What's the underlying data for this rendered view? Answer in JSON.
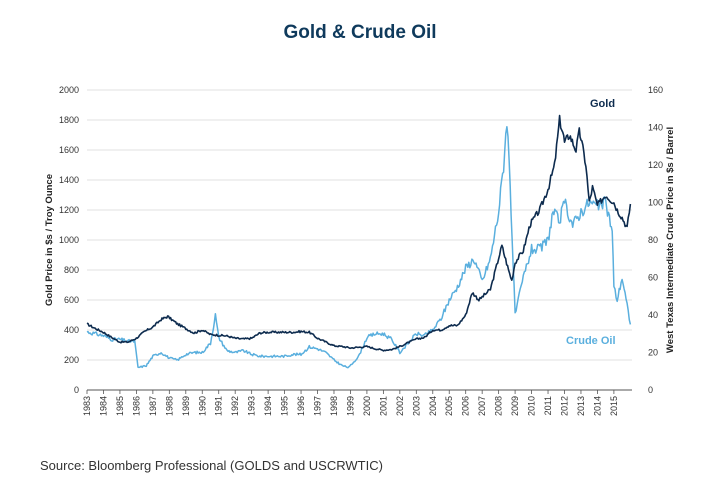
{
  "source": "Source: Bloomberg Professional (GOLDS and USCRWTIC)",
  "colors": {
    "gold": "#0d2b4e",
    "crude_oil": "#5aafde",
    "title": "#0f3a5c",
    "grid": "#d9d9d9"
  },
  "chart_data": {
    "type": "line",
    "title": "Gold & Crude Oil",
    "y_left_label": "Gold Price in $s / Troy Ounce",
    "y_right_label": "West Texas Intermediate Crude Price in $s / Barrel",
    "x_ticks": [
      "1983",
      "1984",
      "1985",
      "1986",
      "1987",
      "1988",
      "1989",
      "1990",
      "1991",
      "1992",
      "1993",
      "1994",
      "1995",
      "1996",
      "1997",
      "1998",
      "1999",
      "2000",
      "2001",
      "2002",
      "2003",
      "2004",
      "2005",
      "2006",
      "2007",
      "2008",
      "2009",
      "2010",
      "2011",
      "2012",
      "2013",
      "2014",
      "2015"
    ],
    "xlim": [
      1983,
      2016.1
    ],
    "y_left_ticks": [
      0,
      200,
      400,
      600,
      800,
      1000,
      1200,
      1400,
      1600,
      1800,
      2000
    ],
    "y_left_lim": [
      0,
      2000
    ],
    "y_right_ticks": [
      0,
      20,
      40,
      60,
      80,
      100,
      120,
      140,
      160
    ],
    "y_right_lim": [
      0,
      160
    ],
    "grid": false,
    "series": [
      {
        "name": "Gold",
        "axis": "left",
        "x": [
          1983.0,
          1983.5,
          1984.0,
          1984.5,
          1985.0,
          1985.5,
          1986.0,
          1986.5,
          1987.0,
          1987.5,
          1987.9,
          1988.5,
          1989.0,
          1989.5,
          1990.0,
          1990.5,
          1991.0,
          1991.5,
          1992.0,
          1992.5,
          1993.0,
          1993.5,
          1994.0,
          1994.5,
          1995.0,
          1995.5,
          1996.0,
          1996.5,
          1997.0,
          1997.5,
          1998.0,
          1998.5,
          1999.0,
          1999.5,
          2000.0,
          2000.5,
          2001.0,
          2001.5,
          2002.0,
          2002.5,
          2003.0,
          2003.5,
          2004.0,
          2004.5,
          2005.0,
          2005.5,
          2006.0,
          2006.4,
          2006.8,
          2007.0,
          2007.5,
          2008.0,
          2008.2,
          2008.6,
          2008.8,
          2009.0,
          2009.5,
          2009.9,
          2010.0,
          2010.5,
          2011.0,
          2011.4,
          2011.7,
          2011.9,
          2012.0,
          2012.3,
          2012.7,
          2012.9,
          2013.0,
          2013.3,
          2013.5,
          2013.7,
          2014.0,
          2014.5,
          2015.0,
          2015.2,
          2015.5,
          2015.8,
          2016.0
        ],
        "y": [
          440,
          410,
          385,
          350,
          320,
          320,
          345,
          390,
          420,
          470,
          490,
          440,
          410,
          380,
          400,
          370,
          365,
          360,
          345,
          340,
          345,
          380,
          385,
          385,
          385,
          385,
          390,
          385,
          345,
          320,
          295,
          290,
          280,
          285,
          290,
          275,
          265,
          270,
          290,
          315,
          340,
          350,
          400,
          400,
          430,
          430,
          500,
          650,
          600,
          620,
          670,
          880,
          960,
          800,
          730,
          850,
          930,
          1100,
          1120,
          1200,
          1340,
          1500,
          1800,
          1720,
          1650,
          1700,
          1600,
          1720,
          1680,
          1500,
          1250,
          1350,
          1230,
          1300,
          1250,
          1200,
          1150,
          1080,
          1240
        ]
      },
      {
        "name": "Crude Oil",
        "axis": "right",
        "x": [
          1983.0,
          1983.5,
          1984.0,
          1984.5,
          1985.0,
          1985.5,
          1985.9,
          1986.1,
          1986.6,
          1987.0,
          1987.5,
          1988.0,
          1988.5,
          1989.0,
          1989.5,
          1990.0,
          1990.5,
          1990.8,
          1991.0,
          1991.5,
          1992.0,
          1992.5,
          1993.0,
          1993.5,
          1994.0,
          1994.5,
          1995.0,
          1995.5,
          1996.0,
          1996.5,
          1997.0,
          1997.5,
          1998.0,
          1998.5,
          1998.9,
          1999.5,
          2000.0,
          2000.5,
          2001.0,
          2001.5,
          2002.0,
          2002.5,
          2003.0,
          2003.5,
          2004.0,
          2004.5,
          2005.0,
          2005.5,
          2006.0,
          2006.5,
          2007.0,
          2007.5,
          2008.0,
          2008.3,
          2008.5,
          2008.7,
          2009.0,
          2009.5,
          2010.0,
          2010.5,
          2011.0,
          2011.3,
          2011.7,
          2012.0,
          2012.5,
          2013.0,
          2013.5,
          2014.0,
          2014.5,
          2014.9,
          2015.0,
          2015.2,
          2015.5,
          2015.8,
          2016.0
        ],
        "y": [
          31,
          30,
          29,
          27,
          27,
          26,
          26,
          12,
          13,
          18,
          20,
          17,
          16,
          19,
          20,
          20,
          25,
          40,
          28,
          21,
          20,
          21,
          19,
          18,
          18,
          18,
          18,
          19,
          19,
          23,
          22,
          20,
          16,
          13,
          12,
          18,
          28,
          30,
          30,
          27,
          20,
          25,
          30,
          29,
          32,
          38,
          48,
          55,
          65,
          70,
          58,
          70,
          95,
          120,
          145,
          110,
          40,
          60,
          75,
          75,
          80,
          95,
          90,
          100,
          88,
          95,
          100,
          98,
          100,
          85,
          55,
          48,
          60,
          45,
          35
        ]
      }
    ],
    "annotations": [
      "Gold",
      "Crude Oil"
    ]
  }
}
